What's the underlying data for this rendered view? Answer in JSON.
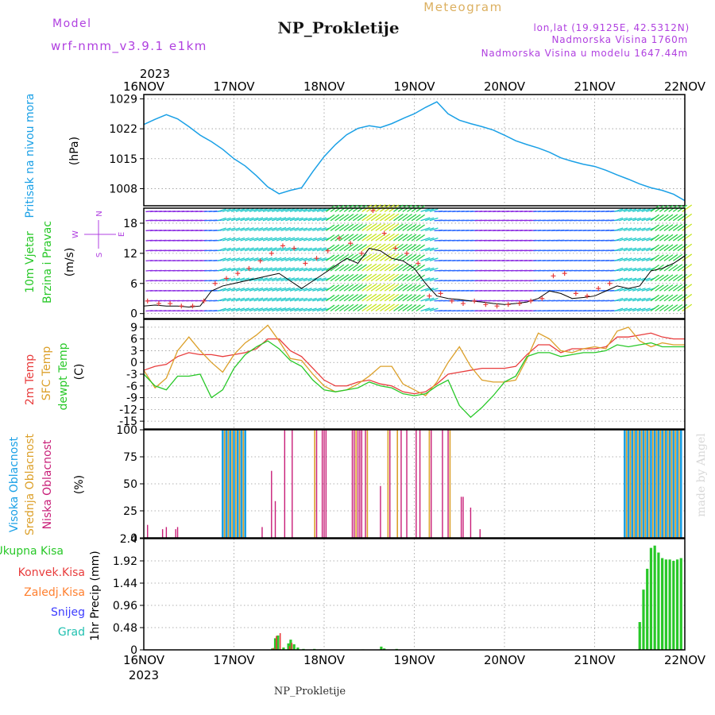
{
  "header": {
    "model_label": "Model",
    "model_name": "wrf-nmm_v3.9.1 e1km",
    "product": "Meteogram",
    "station": "NP_Prokletije",
    "lonlat": "lon,lat (19.9125E, 42.5312N)",
    "altitude": "Nadmorska Visina 1760m",
    "model_altitude": "Nadmorska Visina u modelu 1647.44m"
  },
  "time_axis": {
    "year": "2023",
    "labels": [
      "16NOV",
      "17NOV",
      "18NOV",
      "19NOV",
      "20NOV",
      "21NOV",
      "22NOV"
    ]
  },
  "footer": {
    "station": "NP_Prokletije",
    "credit": "made by Angel"
  },
  "colors": {
    "pressure": "#1aa0e6",
    "temp2m": "#e83c3c",
    "sfc_temp": "#dca02a",
    "dewpt": "#28c828",
    "wind_speed": "#000000",
    "gust": "#e83c3c",
    "cloud_high": "#1aa0e6",
    "cloud_mid": "#dca02a",
    "cloud_low": "#c81e78",
    "precip_total": "#28c828",
    "precip_conv": "#e83c3c",
    "precip_frozen": "#ff8030",
    "snow": "#3c3cff",
    "hail": "#20c0b0",
    "wind_compass": "#b040e0"
  },
  "panels": {
    "pressure": {
      "label_line1": "Pritisak na nivou mora",
      "unit": "(hPa)",
      "yticks": [
        1008,
        1015,
        1022,
        1029
      ]
    },
    "wind": {
      "label_line1": "10m Vjetar",
      "label_line2": "Brzina i Pravac",
      "unit": "(m/s)",
      "compass": {
        "n": "N",
        "s": "S",
        "e": "E",
        "w": "W"
      },
      "yticks": [
        0,
        6,
        12,
        18
      ]
    },
    "temp": {
      "label_line1": "2m Temp",
      "label_line2": "SFC Temp",
      "label_line3": "dewpt Temp",
      "unit": "(C)",
      "yticks": [
        -15,
        -12,
        -9,
        -6,
        -3,
        0,
        3,
        6,
        9
      ]
    },
    "cloud": {
      "label_line1": "Visoka Oblacnost",
      "label_line2": "Srednja Oblacnost",
      "label_line3": "Niska Oblacnost",
      "unit": "(%)",
      "yticks": [
        0,
        25,
        50,
        75,
        100
      ]
    },
    "precip": {
      "legend": [
        "Ukupna Kisa",
        "Konvek.Kisa",
        "Zaledj.Kisa",
        "Snijeg",
        "Grad"
      ],
      "unit": "1hr Precip (mm)",
      "yticks": [
        "0",
        "0.48",
        "0.96",
        "1.44",
        "1.92",
        "2.4"
      ]
    }
  },
  "chart_data": [
    {
      "type": "line",
      "name": "pressure",
      "ylabel": "Pritisak na nivou mora (hPa)",
      "ylim": [
        1004,
        1030
      ],
      "x_unit": "hours since 16NOV 00",
      "x": [
        0,
        3,
        6,
        9,
        12,
        15,
        18,
        21,
        24,
        27,
        30,
        33,
        36,
        39,
        42,
        45,
        48,
        51,
        54,
        57,
        60,
        63,
        66,
        69,
        72,
        75,
        78,
        81,
        84,
        87,
        90,
        93,
        96,
        99,
        102,
        105,
        108,
        111,
        114,
        117,
        120,
        123,
        126,
        129,
        132,
        135,
        138,
        141,
        144
      ],
      "values": [
        1023,
        1024.2,
        1025.3,
        1024.3,
        1022.5,
        1020.5,
        1019.0,
        1017.2,
        1015.0,
        1013.3,
        1011.0,
        1008.4,
        1006.8,
        1007.6,
        1008.2,
        1012.0,
        1015.5,
        1018.3,
        1020.6,
        1022.1,
        1022.7,
        1022.3,
        1023.2,
        1024.4,
        1025.5,
        1027.0,
        1028.3,
        1025.5,
        1024.0,
        1023.2,
        1022.5,
        1021.7,
        1020.5,
        1019.2,
        1018.3,
        1017.5,
        1016.5,
        1015.2,
        1014.4,
        1013.7,
        1013.2,
        1012.3,
        1011.2,
        1010.2,
        1009.1,
        1008.2,
        1007.6,
        1006.7,
        1005.2
      ]
    },
    {
      "type": "line",
      "name": "wind",
      "ylabel": "10m Vjetar Brzina i Pravac (m/s)",
      "ylim": [
        -1,
        21
      ],
      "x_unit": "hours since 16NOV 00",
      "series": [
        {
          "name": "speed",
          "x": [
            0,
            3,
            6,
            9,
            12,
            15,
            18,
            21,
            24,
            27,
            30,
            33,
            36,
            39,
            42,
            45,
            48,
            51,
            54,
            57,
            60,
            63,
            66,
            69,
            72,
            75,
            78,
            81,
            84,
            87,
            90,
            93,
            96,
            99,
            102,
            105,
            108,
            111,
            114,
            117,
            120,
            123,
            126,
            129,
            132,
            135,
            138,
            141,
            144
          ],
          "values": [
            1.5,
            1.7,
            1.5,
            1.5,
            1.3,
            1.5,
            4.5,
            5.5,
            6.0,
            6.5,
            7.0,
            7.5,
            8.0,
            6.5,
            5.0,
            6.5,
            8.0,
            9.5,
            11.0,
            10.0,
            13.0,
            12.5,
            11.0,
            10.5,
            9.0,
            6.0,
            3.5,
            3.0,
            2.8,
            2.5,
            2.3,
            2.0,
            1.8,
            2.0,
            2.3,
            3.0,
            4.5,
            4.0,
            3.0,
            3.2,
            3.5,
            4.5,
            5.5,
            5.0,
            5.5,
            8.5,
            9.0,
            10.0,
            11.5
          ]
        },
        {
          "name": "gust",
          "x": [
            1,
            4,
            7,
            10,
            13,
            16,
            19,
            22,
            25,
            28,
            31,
            34,
            37,
            40,
            43,
            46,
            49,
            52,
            55,
            58,
            61,
            64,
            67,
            70,
            73,
            76,
            79,
            82,
            85,
            88,
            91,
            94,
            97,
            100,
            103,
            106,
            109,
            112,
            115,
            118,
            121,
            124
          ],
          "values": [
            2.5,
            2.0,
            2.0,
            1.5,
            1.5,
            2.5,
            6.0,
            7.0,
            8.0,
            9.0,
            10.5,
            12.0,
            13.5,
            13.0,
            10.0,
            11.0,
            12.5,
            15.0,
            14.0,
            12.0,
            20.5,
            16.0,
            13.0,
            12.0,
            10.0,
            3.5,
            4.0,
            2.5,
            2.0,
            2.5,
            1.8,
            1.5,
            1.8,
            2.0,
            2.5,
            3.0,
            7.5,
            8.0,
            4.0,
            3.5,
            5.0,
            6.0
          ]
        }
      ]
    },
    {
      "type": "line",
      "name": "temperature",
      "ylabel": "2m Temp / SFC Temp / dewpt Temp (C)",
      "ylim": [
        -17,
        11
      ],
      "x_unit": "hours since 16NOV 00",
      "x": [
        0,
        3,
        6,
        9,
        12,
        15,
        18,
        21,
        24,
        27,
        30,
        33,
        36,
        39,
        42,
        45,
        48,
        51,
        54,
        57,
        60,
        63,
        66,
        69,
        72,
        75,
        78,
        81,
        84,
        87,
        90,
        93,
        96,
        99,
        102,
        105,
        108,
        111,
        114,
        117,
        120,
        123,
        126,
        129,
        132,
        135,
        138,
        141,
        144
      ],
      "series": [
        {
          "name": "2m Temp",
          "values": [
            -2,
            -1,
            -0.5,
            1.5,
            2.5,
            2.0,
            2.0,
            1.5,
            2.0,
            2.5,
            3.5,
            6.0,
            6.0,
            3.0,
            1.5,
            -1.5,
            -4.5,
            -6.0,
            -6.0,
            -5.0,
            -4.5,
            -5.5,
            -6.0,
            -7.5,
            -8.0,
            -7.5,
            -5.5,
            -3.0,
            -2.5,
            -2.0,
            -1.5,
            -1.5,
            -1.5,
            -1.0,
            2.0,
            4.5,
            4.5,
            2.5,
            3.5,
            3.5,
            3.5,
            4.0,
            6.5,
            6.5,
            7.0,
            7.5,
            6.5,
            6.0,
            6.0
          ]
        },
        {
          "name": "SFC Temp",
          "values": [
            -2,
            -6.5,
            -4.0,
            3.0,
            6.5,
            3.0,
            0.0,
            -2.5,
            2.0,
            5.0,
            7.0,
            9.5,
            5.5,
            1.0,
            0.5,
            -3.0,
            -6.0,
            -7.5,
            -7.0,
            -5.5,
            -3.5,
            -1.0,
            -1.0,
            -5.5,
            -7.0,
            -8.5,
            -5.0,
            0.0,
            4.0,
            -1.0,
            -4.5,
            -5.0,
            -5.0,
            -4.5,
            1.0,
            7.5,
            6.0,
            3.0,
            2.5,
            3.5,
            4.0,
            3.5,
            8.0,
            9.0,
            5.5,
            4.0,
            5.0,
            4.5,
            4.5
          ]
        },
        {
          "name": "dewpt Temp",
          "values": [
            -3,
            -6.0,
            -7.0,
            -3.5,
            -3.5,
            -3.0,
            -9.0,
            -7.0,
            -1.5,
            2.0,
            4.0,
            5.5,
            3.5,
            0.5,
            -1.0,
            -4.5,
            -7.0,
            -7.5,
            -7.0,
            -6.5,
            -5.0,
            -6.0,
            -6.5,
            -8.0,
            -8.5,
            -8.0,
            -6.0,
            -4.5,
            -11.0,
            -14.0,
            -11.5,
            -8.5,
            -5.0,
            -3.5,
            1.5,
            2.5,
            2.5,
            1.5,
            2.0,
            2.5,
            2.5,
            3.0,
            4.5,
            4.0,
            4.5,
            5.0,
            4.0,
            4.0,
            4.0
          ]
        }
      ]
    },
    {
      "type": "bar",
      "name": "cloud_cover",
      "ylabel": "Oblacnost (%)",
      "ylim": [
        0,
        100
      ],
      "x_unit": "hours since 16NOV 00",
      "series": [
        {
          "name": "Visoka Oblacnost",
          "x": [
            21,
            22,
            23,
            24,
            25,
            26,
            27,
            128,
            129,
            130,
            131,
            132,
            133,
            134,
            135,
            136,
            137,
            138,
            139,
            140,
            141,
            142,
            143
          ],
          "values": [
            100,
            100,
            100,
            100,
            100,
            100,
            100,
            100,
            100,
            100,
            100,
            100,
            100,
            100,
            100,
            100,
            100,
            100,
            100,
            100,
            100,
            100,
            100
          ]
        },
        {
          "name": "Srednja Oblacnost",
          "x": [
            21.5,
            22.5,
            23.5,
            24.5,
            25.5,
            26.5,
            45.5,
            56.5,
            59.5,
            65,
            67.5,
            76,
            81.5,
            128.5,
            129.5,
            130.5,
            131.5,
            132.5,
            133.5,
            134.5,
            135.5,
            136.5,
            137.5,
            138.5,
            139.5,
            140.5,
            141.5,
            142.5
          ],
          "values": [
            100,
            100,
            100,
            100,
            100,
            100,
            100,
            100,
            100,
            100,
            100,
            100,
            100,
            100,
            100,
            100,
            100,
            100,
            100,
            100,
            100,
            100,
            100,
            100,
            100,
            100,
            100,
            100
          ]
        },
        {
          "name": "Niska Oblacnost",
          "x": [
            1,
            5,
            6,
            8.5,
            9,
            31.5,
            34,
            35,
            37.5,
            39.5,
            46,
            47.5,
            48,
            48.5,
            55.5,
            56,
            57,
            57.5,
            58,
            59,
            63,
            65.5,
            68.5,
            70,
            72.5,
            73.5,
            76.5,
            79.5,
            81,
            84.5,
            85,
            87,
            89.5
          ],
          "values": [
            12,
            8,
            10,
            8,
            10,
            10,
            62,
            34,
            100,
            100,
            100,
            100,
            100,
            100,
            100,
            100,
            100,
            100,
            100,
            100,
            48,
            100,
            100,
            100,
            100,
            100,
            100,
            100,
            100,
            38,
            38,
            28,
            8
          ]
        }
      ]
    },
    {
      "type": "bar",
      "name": "precipitation",
      "ylabel": "1hr Precip (mm)",
      "ylim": [
        0,
        2.4
      ],
      "x_unit": "hours since 16NOV 00",
      "series": [
        {
          "name": "Ukupna Kisa",
          "x": [
            34.2,
            35,
            35.7,
            37.2,
            38.5,
            39.1,
            40,
            41,
            42.5,
            45.4,
            47,
            58.3,
            63.2,
            64,
            67.3,
            132,
            133,
            134,
            135,
            136,
            137,
            138,
            139,
            140,
            141,
            142,
            143
          ],
          "values": [
            0.03,
            0.25,
            0.31,
            0.05,
            0.14,
            0.22,
            0.12,
            0.05,
            0.02,
            0.02,
            0.01,
            0.01,
            0.07,
            0.03,
            0.02,
            0.6,
            1.3,
            1.75,
            2.2,
            2.25,
            2.1,
            1.98,
            1.95,
            1.95,
            1.92,
            1.95,
            1.98
          ]
        },
        {
          "name": "Konvek.Kisa",
          "x": [
            34.5,
            35.3,
            36.3,
            38.8,
            39.4
          ],
          "values": [
            0.04,
            0.3,
            0.36,
            0.08,
            0.15
          ]
        }
      ]
    }
  ]
}
